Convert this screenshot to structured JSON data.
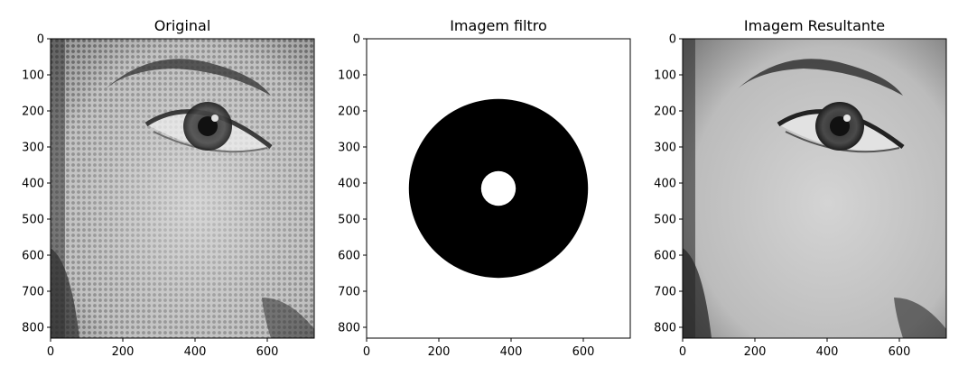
{
  "chart_data": [
    {
      "type": "image",
      "title": "Original",
      "content": "halftone grayscale photo of a human eye",
      "x_ticks": [
        0,
        200,
        400,
        600
      ],
      "y_ticks": [
        0,
        100,
        200,
        300,
        400,
        500,
        600,
        700,
        800
      ],
      "xlim": [
        0,
        730
      ],
      "ylim": [
        830,
        0
      ],
      "colormap": "gray"
    },
    {
      "type": "image",
      "title": "Imagem filtro",
      "content": "frequency-domain mask: white background with a black annulus (band-stop ring) and a white center disk",
      "x_ticks": [
        0,
        200,
        400,
        600
      ],
      "y_ticks": [
        0,
        100,
        200,
        300,
        400,
        500,
        600,
        700,
        800
      ],
      "xlim": [
        0,
        730
      ],
      "ylim": [
        830,
        0
      ],
      "filter": {
        "center_x": 365,
        "center_y": 415,
        "outer_radius": 248,
        "inner_radius": 48
      },
      "colormap": "gray"
    },
    {
      "type": "image",
      "title": "Imagem Resultante",
      "content": "filtered grayscale photo of a human eye with halftone pattern removed",
      "x_ticks": [
        0,
        200,
        400,
        600
      ],
      "y_ticks": [
        0,
        100,
        200,
        300,
        400,
        500,
        600,
        700,
        800
      ],
      "xlim": [
        0,
        730
      ],
      "ylim": [
        830,
        0
      ],
      "colormap": "gray"
    }
  ]
}
